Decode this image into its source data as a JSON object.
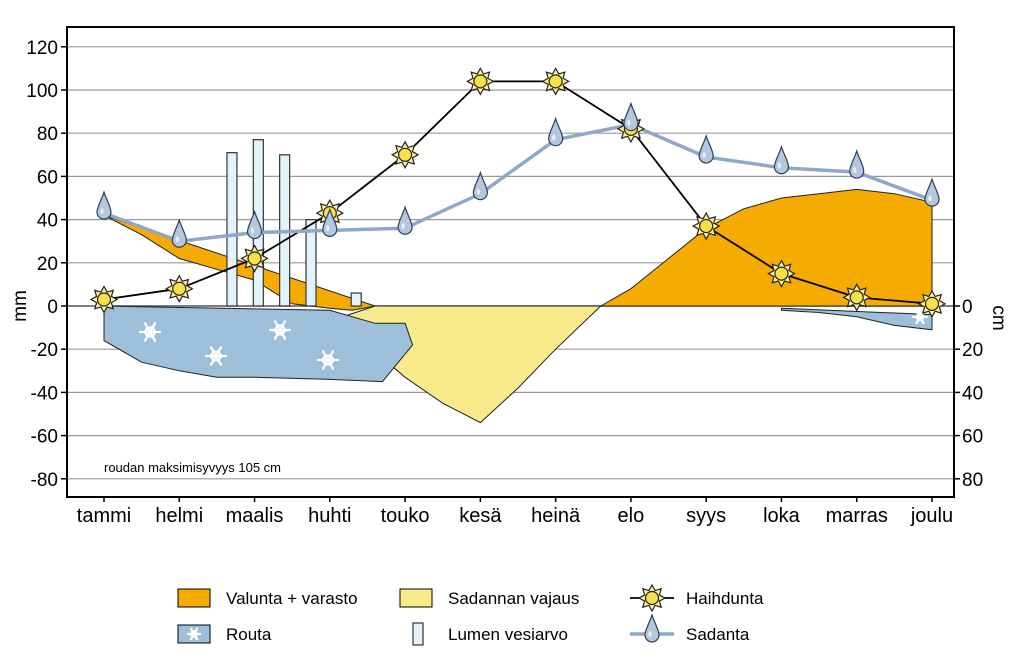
{
  "chart_data": {
    "type": "line",
    "categories": [
      "tammi",
      "helmi",
      "maalis",
      "huhti",
      "touko",
      "kesä",
      "heinä",
      "elo",
      "syys",
      "loka",
      "marras",
      "joulu"
    ],
    "ylabel_left": "mm",
    "ylabel_right": "cm",
    "ylim": [
      -90,
      125
    ],
    "y_ticks_left": [
      120,
      100,
      80,
      60,
      40,
      20,
      0,
      -20,
      -40,
      -60,
      -80
    ],
    "y_ticks_right_labels": [
      "0",
      "20",
      "40",
      "60",
      "80"
    ],
    "y_ticks_right_positions": [
      0,
      -20,
      -40,
      -60,
      -80
    ],
    "grid": true,
    "annotation": "roudan maksimisyvyys 105 cm",
    "series": [
      {
        "name": "Haihdunta",
        "kind": "line-sun",
        "color": "#000000",
        "values": [
          3,
          8,
          22,
          43,
          70,
          104,
          104,
          82,
          37,
          15,
          4,
          1
        ]
      },
      {
        "name": "Sadanta",
        "kind": "line-drop",
        "color": "#8fa8c8",
        "values": [
          43,
          30,
          34,
          35,
          36,
          52,
          77,
          84,
          69,
          64,
          62,
          49
        ]
      },
      {
        "name": "Lumen vesiarvo",
        "kind": "bars",
        "color": "#e3f3fb",
        "points": [
          {
            "x": 2.7,
            "value": 71
          },
          {
            "x": 3.05,
            "value": 77
          },
          {
            "x": 3.4,
            "value": 70
          },
          {
            "x": 3.75,
            "value": 40
          },
          {
            "x": 4.35,
            "value": 6
          }
        ]
      }
    ],
    "areas": [
      {
        "name": "Valunta + varasto",
        "color": "#f6ab00",
        "points": [
          [
            1,
            42
          ],
          [
            1.5,
            33
          ],
          [
            2,
            22
          ],
          [
            2.5,
            17
          ],
          [
            3,
            12
          ],
          [
            3.5,
            1
          ],
          [
            4,
            -1
          ],
          [
            4.3,
            -2
          ],
          [
            4.6,
            0
          ]
        ]
      },
      {
        "name": "Valunta + varasto",
        "color": "#f6ab00",
        "points": [
          [
            7.6,
            0
          ],
          [
            8,
            8
          ],
          [
            8.5,
            22
          ],
          [
            9,
            36
          ],
          [
            9.5,
            45
          ],
          [
            10,
            50
          ],
          [
            10.5,
            52
          ],
          [
            11,
            54
          ],
          [
            11.5,
            52
          ],
          [
            12,
            48
          ],
          [
            12,
            0
          ]
        ]
      },
      {
        "name": "Sadannan vajaus",
        "color": "#f9eb8c",
        "points": [
          [
            4.6,
            0
          ],
          [
            7.6,
            0
          ],
          [
            7,
            -20
          ],
          [
            6.5,
            -38
          ],
          [
            6,
            -54
          ],
          [
            5.5,
            -45
          ],
          [
            5,
            -33
          ],
          [
            4.5,
            -18
          ],
          [
            4.2,
            -12
          ],
          [
            4,
            -7
          ]
        ]
      },
      {
        "name": "Routa",
        "color": "#9dbfda",
        "points": [
          [
            1,
            0
          ],
          [
            4,
            -2
          ],
          [
            4.6,
            -8
          ],
          [
            5,
            -8
          ],
          [
            5.1,
            -18
          ],
          [
            4.7,
            -35
          ],
          [
            4,
            -34
          ],
          [
            3,
            -33
          ],
          [
            2.5,
            -33
          ],
          [
            2,
            -30
          ],
          [
            1.5,
            -26
          ],
          [
            1,
            -16
          ]
        ]
      },
      {
        "name": "Routa",
        "color": "#9dbfda",
        "points": [
          [
            10,
            -1
          ],
          [
            12,
            -4
          ],
          [
            12,
            -11
          ],
          [
            11.5,
            -9
          ],
          [
            11,
            -5
          ],
          [
            10.5,
            -3
          ],
          [
            10,
            -2
          ]
        ]
      }
    ]
  },
  "legend": [
    {
      "label": "Valunta + varasto",
      "swatch": "fill",
      "color": "#f6ab00"
    },
    {
      "label": "Sadannan vajaus",
      "swatch": "fill",
      "color": "#f9eb8c"
    },
    {
      "label": "Haihdunta",
      "swatch": "sun-line",
      "color": "#000000"
    },
    {
      "label": "Routa",
      "swatch": "snow",
      "color": "#9dbfda"
    },
    {
      "label": "Lumen vesiarvo",
      "swatch": "bar",
      "color": "#e3f3fb"
    },
    {
      "label": "Sadanta",
      "swatch": "drop-line",
      "color": "#8fa8c8"
    }
  ],
  "icons": {
    "sun": "sun-icon",
    "drop": "raindrop-icon",
    "snow": "snowflake-icon"
  }
}
